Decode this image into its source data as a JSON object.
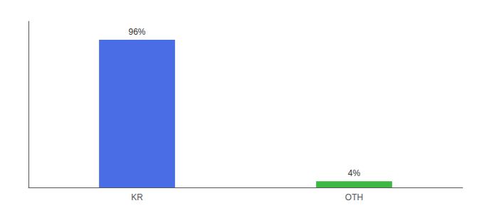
{
  "chart_data": {
    "type": "bar",
    "categories": [
      "KR",
      "OTH"
    ],
    "values": [
      96,
      4
    ],
    "value_labels": [
      "96%",
      "4%"
    ],
    "colors": [
      "#4a6de5",
      "#3db843"
    ],
    "ylim": [
      0,
      108
    ],
    "tick_labels": "x",
    "data_labels": true,
    "grid": false
  }
}
